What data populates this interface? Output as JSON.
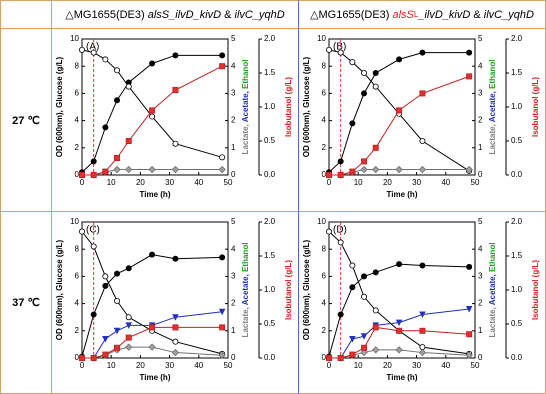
{
  "header": {
    "columns": [
      [
        {
          "text": "△MG1655(DE3) ",
          "style": "normal",
          "color": "#000"
        },
        {
          "text": "alsS_ilvD_kivD",
          "style": "italic",
          "color": "#000"
        },
        {
          "text": " & ",
          "style": "normal",
          "color": "#000"
        },
        {
          "text": "ilvC_yqhD",
          "style": "italic",
          "color": "#000"
        }
      ],
      [
        {
          "text": "△MG1655(DE3) ",
          "style": "normal",
          "color": "#000"
        },
        {
          "text": "alsS",
          "style": "italic",
          "color": "#e02020"
        },
        {
          "text": "L",
          "style": "sup",
          "color": "#e02020"
        },
        {
          "text": "_ilvD_kivD",
          "style": "italic",
          "color": "#000"
        },
        {
          "text": " & ",
          "style": "normal",
          "color": "#000"
        },
        {
          "text": "ilvC_yqhD",
          "style": "italic",
          "color": "#000"
        }
      ]
    ]
  },
  "rows": [
    {
      "label": "27 ℃"
    },
    {
      "label": "37 ℃"
    }
  ],
  "chart_data": [
    {
      "type": "line",
      "panel": "(A)",
      "xlabel": "Time (h)",
      "ylabel": "OD (600nm), Glucose (g/L)",
      "y2label": [
        {
          "text": "Lactate, ",
          "color": "#808080"
        },
        {
          "text": "Acetate, ",
          "color": "#2030c0"
        },
        {
          "text": "Ethanol",
          "color": "#20a020"
        }
      ],
      "y3label": "Isobutanol (g/L)",
      "y3color": "#e02020",
      "x": [
        0,
        4,
        8,
        12,
        16,
        24,
        32,
        48
      ],
      "xlim": [
        0,
        50
      ],
      "xticks": [
        0,
        10,
        20,
        30,
        40,
        50
      ],
      "ylim": [
        0,
        10
      ],
      "yticks": [
        0,
        2,
        4,
        6,
        8,
        10
      ],
      "y2lim": [
        0,
        5
      ],
      "y2ticks": [
        0,
        1,
        2,
        3,
        4,
        5
      ],
      "y3lim": [
        0,
        2
      ],
      "y3ticks": [
        {
          "value": 0,
          "label": "0.0"
        },
        {
          "value": 0.5,
          "label": "0.5"
        },
        {
          "value": 1,
          "label": "1.0"
        },
        {
          "value": 1.5,
          "label": "1.5"
        },
        {
          "value": 2,
          "label": "2.0"
        }
      ],
      "vline": {
        "x": 4,
        "color": "#e03030"
      },
      "series": [
        {
          "axis": "y",
          "marker": "circle",
          "color": "#000000",
          "fill": "#000000",
          "values": [
            0.2,
            1,
            3.5,
            5.5,
            6.8,
            8.2,
            8.8,
            8.8
          ]
        },
        {
          "axis": "y",
          "marker": "circle",
          "color": "#000000",
          "fill": "#ffffff",
          "values": [
            9.2,
            9,
            8.5,
            7.7,
            6.5,
            4.3,
            2.3,
            1.3
          ]
        },
        {
          "axis": "y2",
          "marker": "diamond",
          "color": "#707070",
          "fill": "#a0a0a0",
          "values": [
            0,
            0,
            0.1,
            0.2,
            0.2,
            0.2,
            0.2,
            0.2
          ]
        },
        {
          "axis": "y3",
          "marker": "square",
          "color": "#c02020",
          "fill": "#e03030",
          "values": [
            0,
            0,
            0.05,
            0.25,
            0.5,
            0.95,
            1.25,
            1.6
          ]
        }
      ]
    },
    {
      "type": "line",
      "panel": "(B)",
      "xlabel": "Time (h)",
      "ylabel": "OD (600nm), Glucose (g/L)",
      "y2label": [
        {
          "text": "Lactate, ",
          "color": "#808080"
        },
        {
          "text": "Acetate, ",
          "color": "#2030c0"
        },
        {
          "text": "Ethanol",
          "color": "#20a020"
        }
      ],
      "y3label": "Isobutanol (g/L)",
      "y3color": "#e02020",
      "x": [
        0,
        4,
        8,
        12,
        16,
        24,
        32,
        48
      ],
      "xlim": [
        0,
        50
      ],
      "xticks": [
        0,
        10,
        20,
        30,
        40,
        50
      ],
      "ylim": [
        0,
        10
      ],
      "yticks": [
        0,
        2,
        4,
        6,
        8,
        10
      ],
      "y2lim": [
        0,
        5
      ],
      "y2ticks": [
        0,
        1,
        2,
        3,
        4,
        5
      ],
      "y3lim": [
        0,
        2
      ],
      "y3ticks": [
        {
          "value": 0,
          "label": "0.0"
        },
        {
          "value": 0.5,
          "label": "0.5"
        },
        {
          "value": 1,
          "label": "1.0"
        },
        {
          "value": 1.5,
          "label": "1.5"
        },
        {
          "value": 2,
          "label": "2.0"
        }
      ],
      "vline": {
        "x": 4,
        "color": "#e03030"
      },
      "series": [
        {
          "axis": "y",
          "marker": "circle",
          "color": "#000000",
          "fill": "#000000",
          "values": [
            0.2,
            1,
            3.8,
            6,
            7.5,
            8.5,
            9,
            9
          ]
        },
        {
          "axis": "y",
          "marker": "circle",
          "color": "#000000",
          "fill": "#ffffff",
          "values": [
            9.2,
            9,
            8.3,
            7.5,
            6.5,
            4.5,
            2.5,
            0.3
          ]
        },
        {
          "axis": "y2",
          "marker": "diamond",
          "color": "#707070",
          "fill": "#a0a0a0",
          "values": [
            0,
            0,
            0.1,
            0.2,
            0.2,
            0.2,
            0.2,
            0.2
          ]
        },
        {
          "axis": "y3",
          "marker": "square",
          "color": "#c02020",
          "fill": "#e03030",
          "values": [
            0,
            0,
            0.05,
            0.2,
            0.4,
            0.95,
            1.2,
            1.45
          ]
        }
      ]
    },
    {
      "type": "line",
      "panel": "(C)",
      "xlabel": "Time (h)",
      "ylabel": "OD (600nm), Glucose (g/L)",
      "y2label": [
        {
          "text": "Lactate, ",
          "color": "#808080"
        },
        {
          "text": "Acetate, ",
          "color": "#2030c0"
        },
        {
          "text": "Ethanol",
          "color": "#20a020"
        }
      ],
      "y3label": "Isobutanol (g/L)",
      "y3color": "#e02020",
      "x": [
        0,
        4,
        8,
        12,
        16,
        24,
        32,
        48
      ],
      "xlim": [
        0,
        50
      ],
      "xticks": [
        0,
        10,
        20,
        30,
        40,
        50
      ],
      "ylim": [
        0,
        10
      ],
      "yticks": [
        0,
        2,
        4,
        6,
        8,
        10
      ],
      "y2lim": [
        0,
        5
      ],
      "y2ticks": [
        0,
        1,
        2,
        3,
        4,
        5
      ],
      "y3lim": [
        0,
        2
      ],
      "y3ticks": [
        {
          "value": 0,
          "label": "0.0"
        },
        {
          "value": 0.5,
          "label": "0.5"
        },
        {
          "value": 1,
          "label": "1.0"
        },
        {
          "value": 1.5,
          "label": "1.5"
        },
        {
          "value": 2,
          "label": "2.0"
        }
      ],
      "vline": {
        "x": 4,
        "color": "#e03030"
      },
      "series": [
        {
          "axis": "y",
          "marker": "circle",
          "color": "#000000",
          "fill": "#000000",
          "values": [
            0.1,
            3.2,
            5.3,
            6.2,
            6.6,
            7.6,
            7.3,
            7.4
          ]
        },
        {
          "axis": "y",
          "marker": "circle",
          "color": "#000000",
          "fill": "#ffffff",
          "values": [
            9.3,
            8.2,
            6,
            4.2,
            3,
            2,
            1.2,
            0.3
          ]
        },
        {
          "axis": "y2",
          "marker": "triangle",
          "color": "#2030c0",
          "fill": "#2030c0",
          "values": [
            0,
            0,
            0.7,
            1,
            1.2,
            1.2,
            1.5,
            1.7
          ]
        },
        {
          "axis": "y2",
          "marker": "diamond",
          "color": "#707070",
          "fill": "#a0a0a0",
          "values": [
            0,
            0,
            0.1,
            0.3,
            0.4,
            0.4,
            0.2,
            0.1
          ]
        },
        {
          "axis": "y3",
          "marker": "square",
          "color": "#c02020",
          "fill": "#e03030",
          "values": [
            0,
            0,
            0.05,
            0.15,
            0.3,
            0.45,
            0.45,
            0.45
          ]
        }
      ]
    },
    {
      "type": "line",
      "panel": "(D)",
      "xlabel": "Time (h)",
      "ylabel": "OD (600nm), Glucose (g/L)",
      "y2label": [
        {
          "text": "Lactate, ",
          "color": "#808080"
        },
        {
          "text": "Acetate, ",
          "color": "#2030c0"
        },
        {
          "text": "Ethanol",
          "color": "#20a020"
        }
      ],
      "y3label": "Isobutanol (g/L)",
      "y3color": "#e02020",
      "x": [
        0,
        4,
        8,
        12,
        16,
        24,
        32,
        48
      ],
      "xlim": [
        0,
        50
      ],
      "xticks": [
        0,
        10,
        20,
        30,
        40,
        50
      ],
      "ylim": [
        0,
        10
      ],
      "yticks": [
        0,
        2,
        4,
        6,
        8,
        10
      ],
      "y2lim": [
        0,
        5
      ],
      "y2ticks": [
        0,
        1,
        2,
        3,
        4,
        5
      ],
      "y3lim": [
        0,
        2
      ],
      "y3ticks": [
        {
          "value": 0,
          "label": "0.0"
        },
        {
          "value": 0.5,
          "label": "0.5"
        },
        {
          "value": 1,
          "label": "1.0"
        },
        {
          "value": 1.5,
          "label": "1.5"
        },
        {
          "value": 2,
          "label": "2.0"
        }
      ],
      "vline": {
        "x": 4,
        "color": "#e03030"
      },
      "series": [
        {
          "axis": "y",
          "marker": "circle",
          "color": "#000000",
          "fill": "#000000",
          "values": [
            0.1,
            3.2,
            5.2,
            6,
            6.3,
            6.9,
            6.8,
            6.7
          ]
        },
        {
          "axis": "y",
          "marker": "circle",
          "color": "#000000",
          "fill": "#ffffff",
          "values": [
            9.3,
            8.5,
            6.8,
            4.5,
            3.5,
            2,
            0.8,
            0.3
          ]
        },
        {
          "axis": "y2",
          "marker": "triangle",
          "color": "#2030c0",
          "fill": "#2030c0",
          "values": [
            0,
            0,
            0.7,
            0.8,
            1.2,
            1.3,
            1.6,
            1.8
          ]
        },
        {
          "axis": "y2",
          "marker": "diamond",
          "color": "#707070",
          "fill": "#a0a0a0",
          "values": [
            0,
            0,
            0.1,
            0.2,
            0.3,
            0.3,
            0.2,
            0.1
          ]
        },
        {
          "axis": "y3",
          "marker": "square",
          "color": "#c02020",
          "fill": "#e03030",
          "values": [
            0,
            0,
            0.05,
            0.15,
            0.45,
            0.4,
            0.4,
            0.35
          ]
        }
      ]
    }
  ]
}
